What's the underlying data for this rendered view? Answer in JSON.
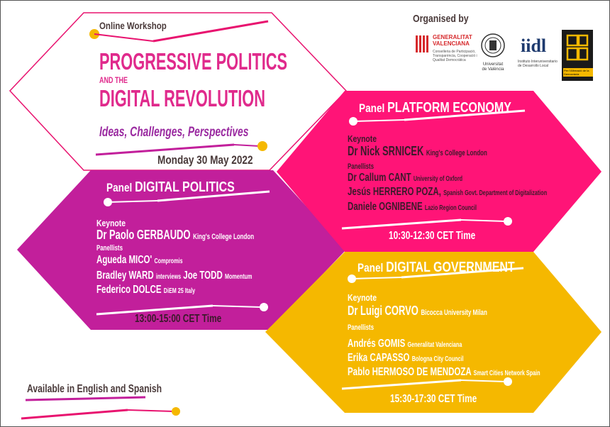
{
  "header": {
    "organised_by": "Organised by",
    "online_workshop": "Online Workshop",
    "title_line1": "PROGRESSIVE POLITICS",
    "title_line2": "AND THE",
    "title_line3": "DIGITAL REVOLUTION",
    "subtitle": "Ideas, Challenges, Perspectives",
    "date": "Monday 30 May 2022"
  },
  "logos": {
    "generalitat_name": "GENERALITAT\nVALENCIANA",
    "generalitat_sub": "Conselleria de Participació, Transparència, Cooperació i Qualitat Democràtica",
    "universitat": "Universitat\nde València",
    "iidl_name": "iidl",
    "iidl_sub": "Instituto Interuniversitario de Desarrollo Local",
    "pabp_sub": "Per l'Afirmació de la Democràcia"
  },
  "panels": {
    "digital_politics": {
      "heading_prefix": "Panel",
      "heading": "DIGITAL POLITICS",
      "keynote_label": "Keynote",
      "keynote_name": "Dr Paolo GERBAUDO",
      "keynote_affil": "King's College London",
      "panellists_label": "Panellists",
      "p1_name": "Agueda MICO'",
      "p1_affil": "Compromis",
      "p2_name": "Bradley WARD",
      "p2_mid": "interviews",
      "p2_name2": "Joe TODD",
      "p2_affil": "Momentum",
      "p3_name": "Federico DOLCE",
      "p3_affil": "DiEM 25 Italy",
      "time": "13:00-15:00 CET Time"
    },
    "platform_economy": {
      "heading_prefix": "Panel",
      "heading": "PLATFORM ECONOMY",
      "keynote_label": "Keynote",
      "keynote_name": "Dr Nick SRNICEK",
      "keynote_affil": "King's College London",
      "panellists_label": "Panellists",
      "p1_name": "Dr Callum CANT",
      "p1_affil": "University of Oxford",
      "p2_name": "Jesús HERRERO POZA,",
      "p2_affil": "Spanish Govt. Department of Digitalization",
      "p3_name": "Daniele OGNIBENE",
      "p3_affil": "Lazio Region Council",
      "time": "10:30-12:30 CET Time"
    },
    "digital_government": {
      "heading_prefix": "Panel",
      "heading": "DIGITAL GOVERNMENT",
      "keynote_label": "Keynote",
      "keynote_name": "Dr Luigi CORVO",
      "keynote_affil": "Bicocca University Milan",
      "panellists_label": "Panellists",
      "p1_name": "Andrés GOMIS",
      "p1_affil": "Generalitat Valenciana",
      "p2_name": "Erika CAPASSO",
      "p2_affil": "Bologna City Council",
      "p3_name": "Pablo HERMOSO DE MENDOZA",
      "p3_affil": "Smart Cities Network Spain",
      "time": "15:30-17:30 CET Time"
    }
  },
  "footer": {
    "languages": "Available in English and Spanish"
  },
  "colors": {
    "magenta": "#e8136f",
    "purple": "#c21f9b",
    "yellow": "#f5b800",
    "hot_pink": "#ff1477",
    "dark_text": "#3a2a2a",
    "title_pink": "#e02a8c",
    "dot_yellow": "#f5b800"
  }
}
